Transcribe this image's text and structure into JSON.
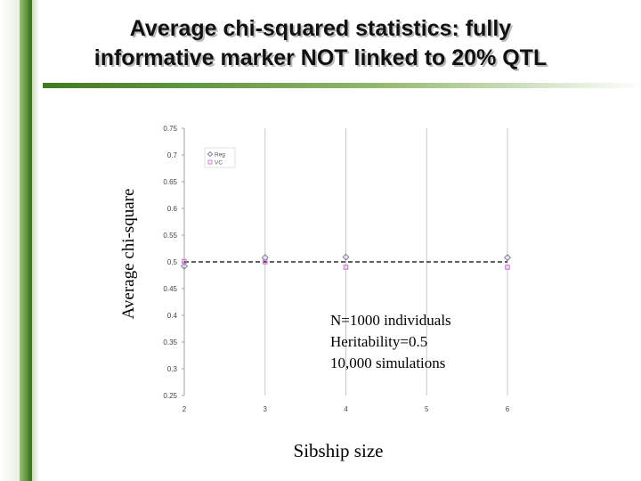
{
  "title": {
    "line1": "Average chi-squared statistics: fully",
    "line2": "informative marker NOT linked to 20% QTL"
  },
  "notes": {
    "line1": "N=1000 individuals",
    "line2": "Heritability=0.5",
    "line3": "10,000 simulations"
  },
  "colors": {
    "accent_green": "#3f7a22",
    "reg_series": "#7a7a9a",
    "vc_series": "#d070d0",
    "reference_line": "#000000"
  },
  "chart_data": {
    "type": "scatter",
    "title": "Average chi-squared statistics: fully informative marker NOT linked to 20% QTL",
    "xlabel": "Sibship size",
    "ylabel": "Average chi-square",
    "x_ticks": [
      "2",
      "3",
      "4",
      "5",
      "6"
    ],
    "y_ticks": [
      "0.25",
      "0.3",
      "0.35",
      "0.4",
      "0.45",
      "0.5",
      "0.55",
      "0.6",
      "0.65",
      "0.7",
      "0.75"
    ],
    "xlim": [
      2,
      6
    ],
    "ylim": [
      0.25,
      0.75
    ],
    "grid": "vertical lines at x ticks",
    "legend_position": "top-left",
    "series": [
      {
        "name": "Reg",
        "marker": "diamond",
        "x": [
          2,
          3,
          4,
          6
        ],
        "y": [
          0.492,
          0.508,
          0.509,
          0.508
        ]
      },
      {
        "name": "VC",
        "marker": "square",
        "x": [
          2,
          3,
          4,
          6
        ],
        "y": [
          0.501,
          0.5,
          0.49,
          0.49
        ]
      }
    ],
    "reference_line": {
      "y": 0.5,
      "style": "dashed"
    }
  }
}
